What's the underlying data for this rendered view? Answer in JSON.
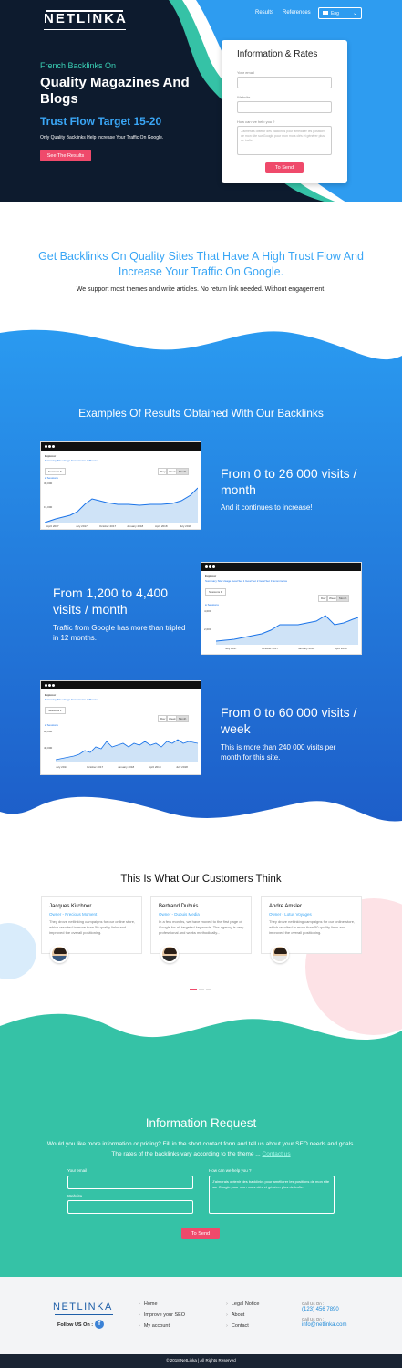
{
  "header": {
    "logo": "NETLINKA",
    "nav": [
      "Results",
      "References"
    ],
    "language": "Eng"
  },
  "hero": {
    "subtitle": "French Backlinks On",
    "title": "Quality Magazines And Blogs",
    "trust": "Trust Flow Target 15-20",
    "description": "Only Quality Backlinks Help Increase Your Traffic On Google.",
    "cta": "See The Results"
  },
  "rates_form": {
    "title": "Information & Rates",
    "email_label": "Your email",
    "website_label": "Website",
    "help_label": "How can we help you ?",
    "help_placeholder": "J'aimerais obtenir des backlinks pour améliorer les positions de mon site sur Google pour mon mots clés et générer plus de trafic.",
    "submit": "To Send"
  },
  "intro": {
    "heading": "Get Backlinks On Quality Sites That Have A High Trust Flow And Increase Your Traffic On Google.",
    "text": "We support most themes and write articles. No return link needed. Without engagement."
  },
  "examples": {
    "title": "Examples Of Results Obtained With Our Backlinks",
    "items": [
      {
        "heading": "From 0 to 26 000 visits / month",
        "text": "And it continues to increase!"
      },
      {
        "heading": "From 1,200 to 4,400 visits / month",
        "text": "Traffic from Google has more than tripled in 12 months."
      },
      {
        "heading": "From 0 to 60 000 visits / week",
        "text": "This is more than 240 000 visits per month for this site."
      }
    ],
    "screens": [
      {
        "tab": "Explorer",
        "subtabs": "Summary   Site Usage   Ecommerce   AdSense",
        "series": "Sessions",
        "range": [
          "Day",
          "Week",
          "Month"
        ],
        "ticks": [
          "April 2017",
          "July 2017",
          "October 2017",
          "January 2018",
          "April 2018",
          "July 2018"
        ],
        "yticks": [
          "30,000",
          "15,000"
        ]
      },
      {
        "tab": "Explorer",
        "subtabs": "Summary   Site Usage   Goal Set 1   Goal Set 2   Goal Set 3   Ecommerce",
        "series": "Sessions",
        "range": [
          "Day",
          "Week",
          "Month"
        ],
        "ticks": [
          "July 2017",
          "October 2017",
          "January 2018",
          "April 2018"
        ],
        "yticks": [
          "4,000",
          "2,000"
        ]
      },
      {
        "tab": "Explorer",
        "subtabs": "Summary   Site Usage   Ecommerce   AdSense",
        "series": "Sessions",
        "range": [
          "Day",
          "Week",
          "Month"
        ],
        "ticks": [
          "July 2017",
          "October 2017",
          "January 2018",
          "April 2018",
          "July 2018"
        ],
        "yticks": [
          "80,000",
          "40,000"
        ]
      }
    ]
  },
  "testimonials": {
    "title": "This Is What Our Customers Think",
    "items": [
      {
        "name": "Jacques Kirchner",
        "role": "Owner - Precious Moment",
        "text": "They drove netlinking campaigns for our online store, which resulted in more than 50 quality links and improved the overall positioning."
      },
      {
        "name": "Bertrand Dubuis",
        "role": "Owner - Dubuis Media",
        "text": "In a few months, we have moved to the first page of Google for all targeted keywords. The agency is very professional and works methodically..."
      },
      {
        "name": "Andre Amsler",
        "role": "Owner - Lotus Voyages",
        "text": "They drove netlinking campaigns for our online store, which resulted in more than 50 quality links and improved the overall positioning."
      }
    ]
  },
  "info_request": {
    "title": "Information Request",
    "text": "Would you like more information or pricing? Fill in the short contact form and tell us about your SEO needs and goals. The rates of the backlinks vary according to the theme ...",
    "contact_link": "Contact us",
    "email_label": "Your email",
    "website_label": "Website",
    "help_label": "How can we help you ?",
    "help_placeholder": "J'aimerais obtenir des backlinks pour améliorer les positions de mon site sur Google pour mon mots clés et générer plus de trafic.",
    "submit": "To Send"
  },
  "footer": {
    "logo": "NETLINKA",
    "follow": "Follow US On :",
    "links1": [
      "Home",
      "Improve your SEO",
      "My account"
    ],
    "links2": [
      "Legal Notice",
      "About",
      "Contact"
    ],
    "call_label": "Call Us On :",
    "phone": "(123) 456 7890",
    "mail_label": "Call Us On :",
    "email": "info@netlinka.com",
    "copyright": "© 2018 NetLinka | All Rights Reserved"
  },
  "colors": {
    "accent_blue": "#3aa6f5",
    "teal": "#35c2a6",
    "red": "#ef4a6b",
    "dark": "#0d1b2e"
  }
}
